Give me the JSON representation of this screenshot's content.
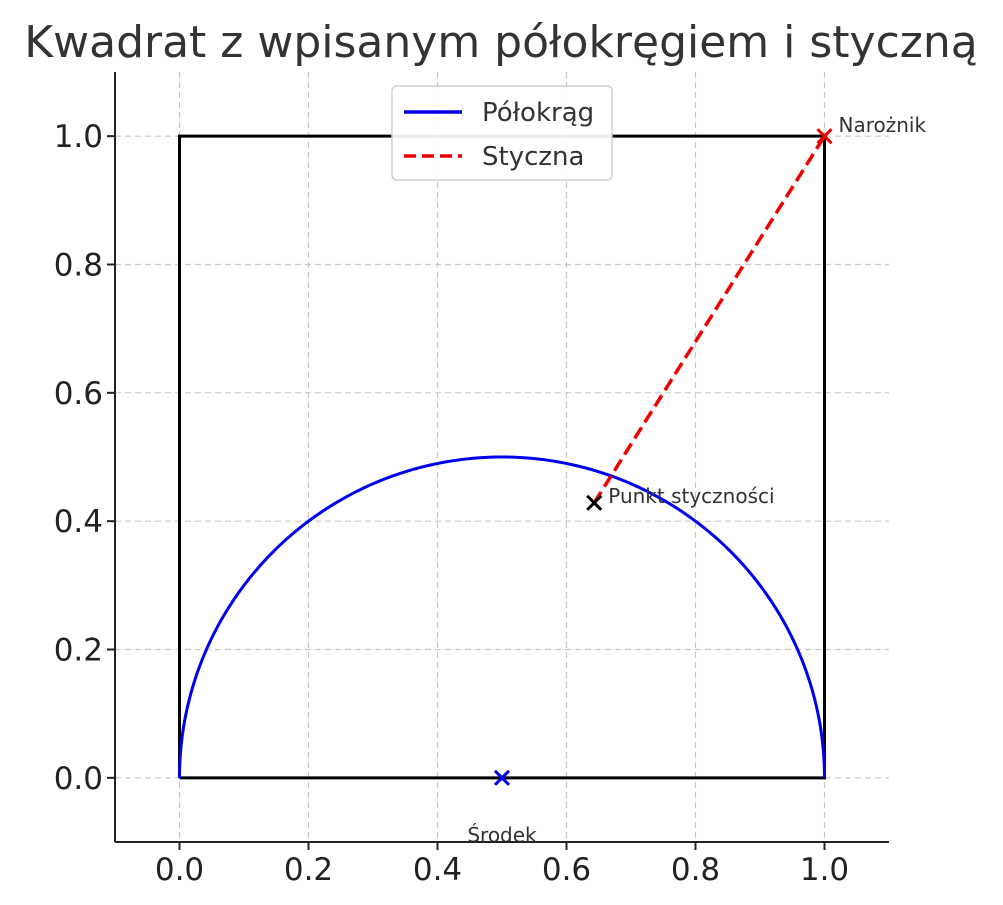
{
  "chart_data": {
    "type": "line",
    "title": "Kwadrat z wpisanym półokręgiem i styczną",
    "xlabel": "",
    "ylabel": "",
    "xlim": [
      -0.1,
      1.1
    ],
    "ylim": [
      -0.1,
      1.1
    ],
    "xticks": [
      0.0,
      0.2,
      0.4,
      0.6,
      0.8,
      1.0
    ],
    "yticks": [
      0.0,
      0.2,
      0.4,
      0.6,
      0.8,
      1.0
    ],
    "xtick_labels": [
      "0.0",
      "0.2",
      "0.4",
      "0.6",
      "0.8",
      "1.0"
    ],
    "ytick_labels": [
      "0.0",
      "0.2",
      "0.4",
      "0.6",
      "0.8",
      "1.0"
    ],
    "grid": true,
    "legend_placement": "top-center",
    "square": {
      "x": [
        0,
        1,
        1,
        0,
        0
      ],
      "y": [
        0,
        0,
        1,
        1,
        0
      ],
      "color": "#000000"
    },
    "series": [
      {
        "name": "Półokrąg",
        "kind": "semicircle",
        "center": [
          0.5,
          0.0
        ],
        "radius": 0.5,
        "color": "#0000ee",
        "style": "solid"
      },
      {
        "name": "Styczna",
        "kind": "segment",
        "x": [
          0.643,
          1.0
        ],
        "y": [
          0.4286,
          1.0
        ],
        "color": "#ee0000",
        "style": "dashed"
      }
    ],
    "points": [
      {
        "label": "Narożnik",
        "x": 1.0,
        "y": 1.0,
        "color": "#ee0000"
      },
      {
        "label": "Punkt styczności",
        "x": 0.643,
        "y": 0.4286,
        "color": "#000000"
      },
      {
        "label": "Środek",
        "x": 0.5,
        "y": 0.0,
        "color": "#0000ee"
      }
    ]
  }
}
